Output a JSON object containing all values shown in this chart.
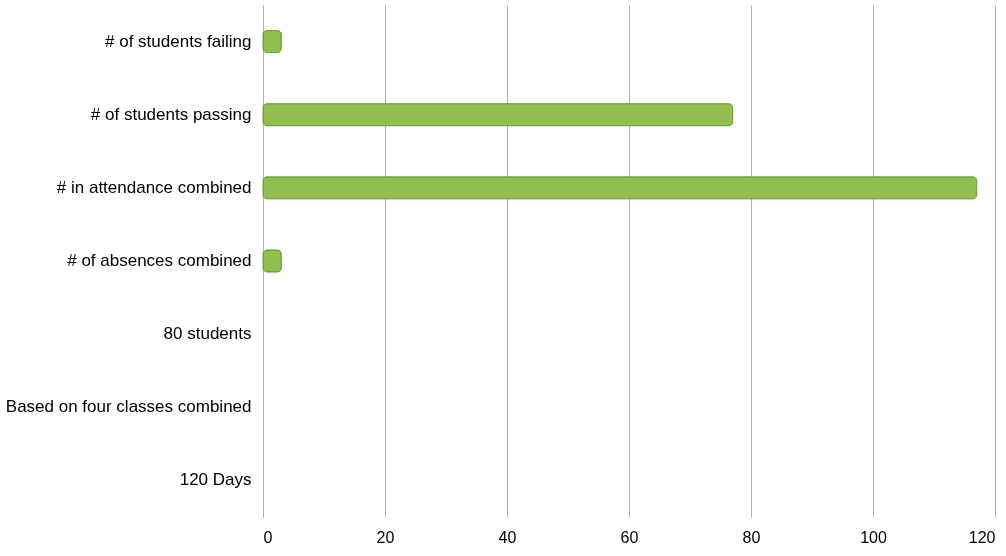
{
  "chart_data": {
    "type": "bar",
    "orientation": "horizontal",
    "categories": [
      "# of students failing",
      "# of students passing",
      "# in attendance combined",
      "# of absences combined",
      "80 students",
      "Based on four classes combined",
      "120 Days"
    ],
    "values": [
      3,
      77,
      117,
      3,
      null,
      null,
      null
    ],
    "color": "#92c050",
    "xlim": [
      0,
      120
    ],
    "xticks": [
      0,
      20,
      40,
      60,
      80,
      100,
      120
    ],
    "grid": "x"
  }
}
